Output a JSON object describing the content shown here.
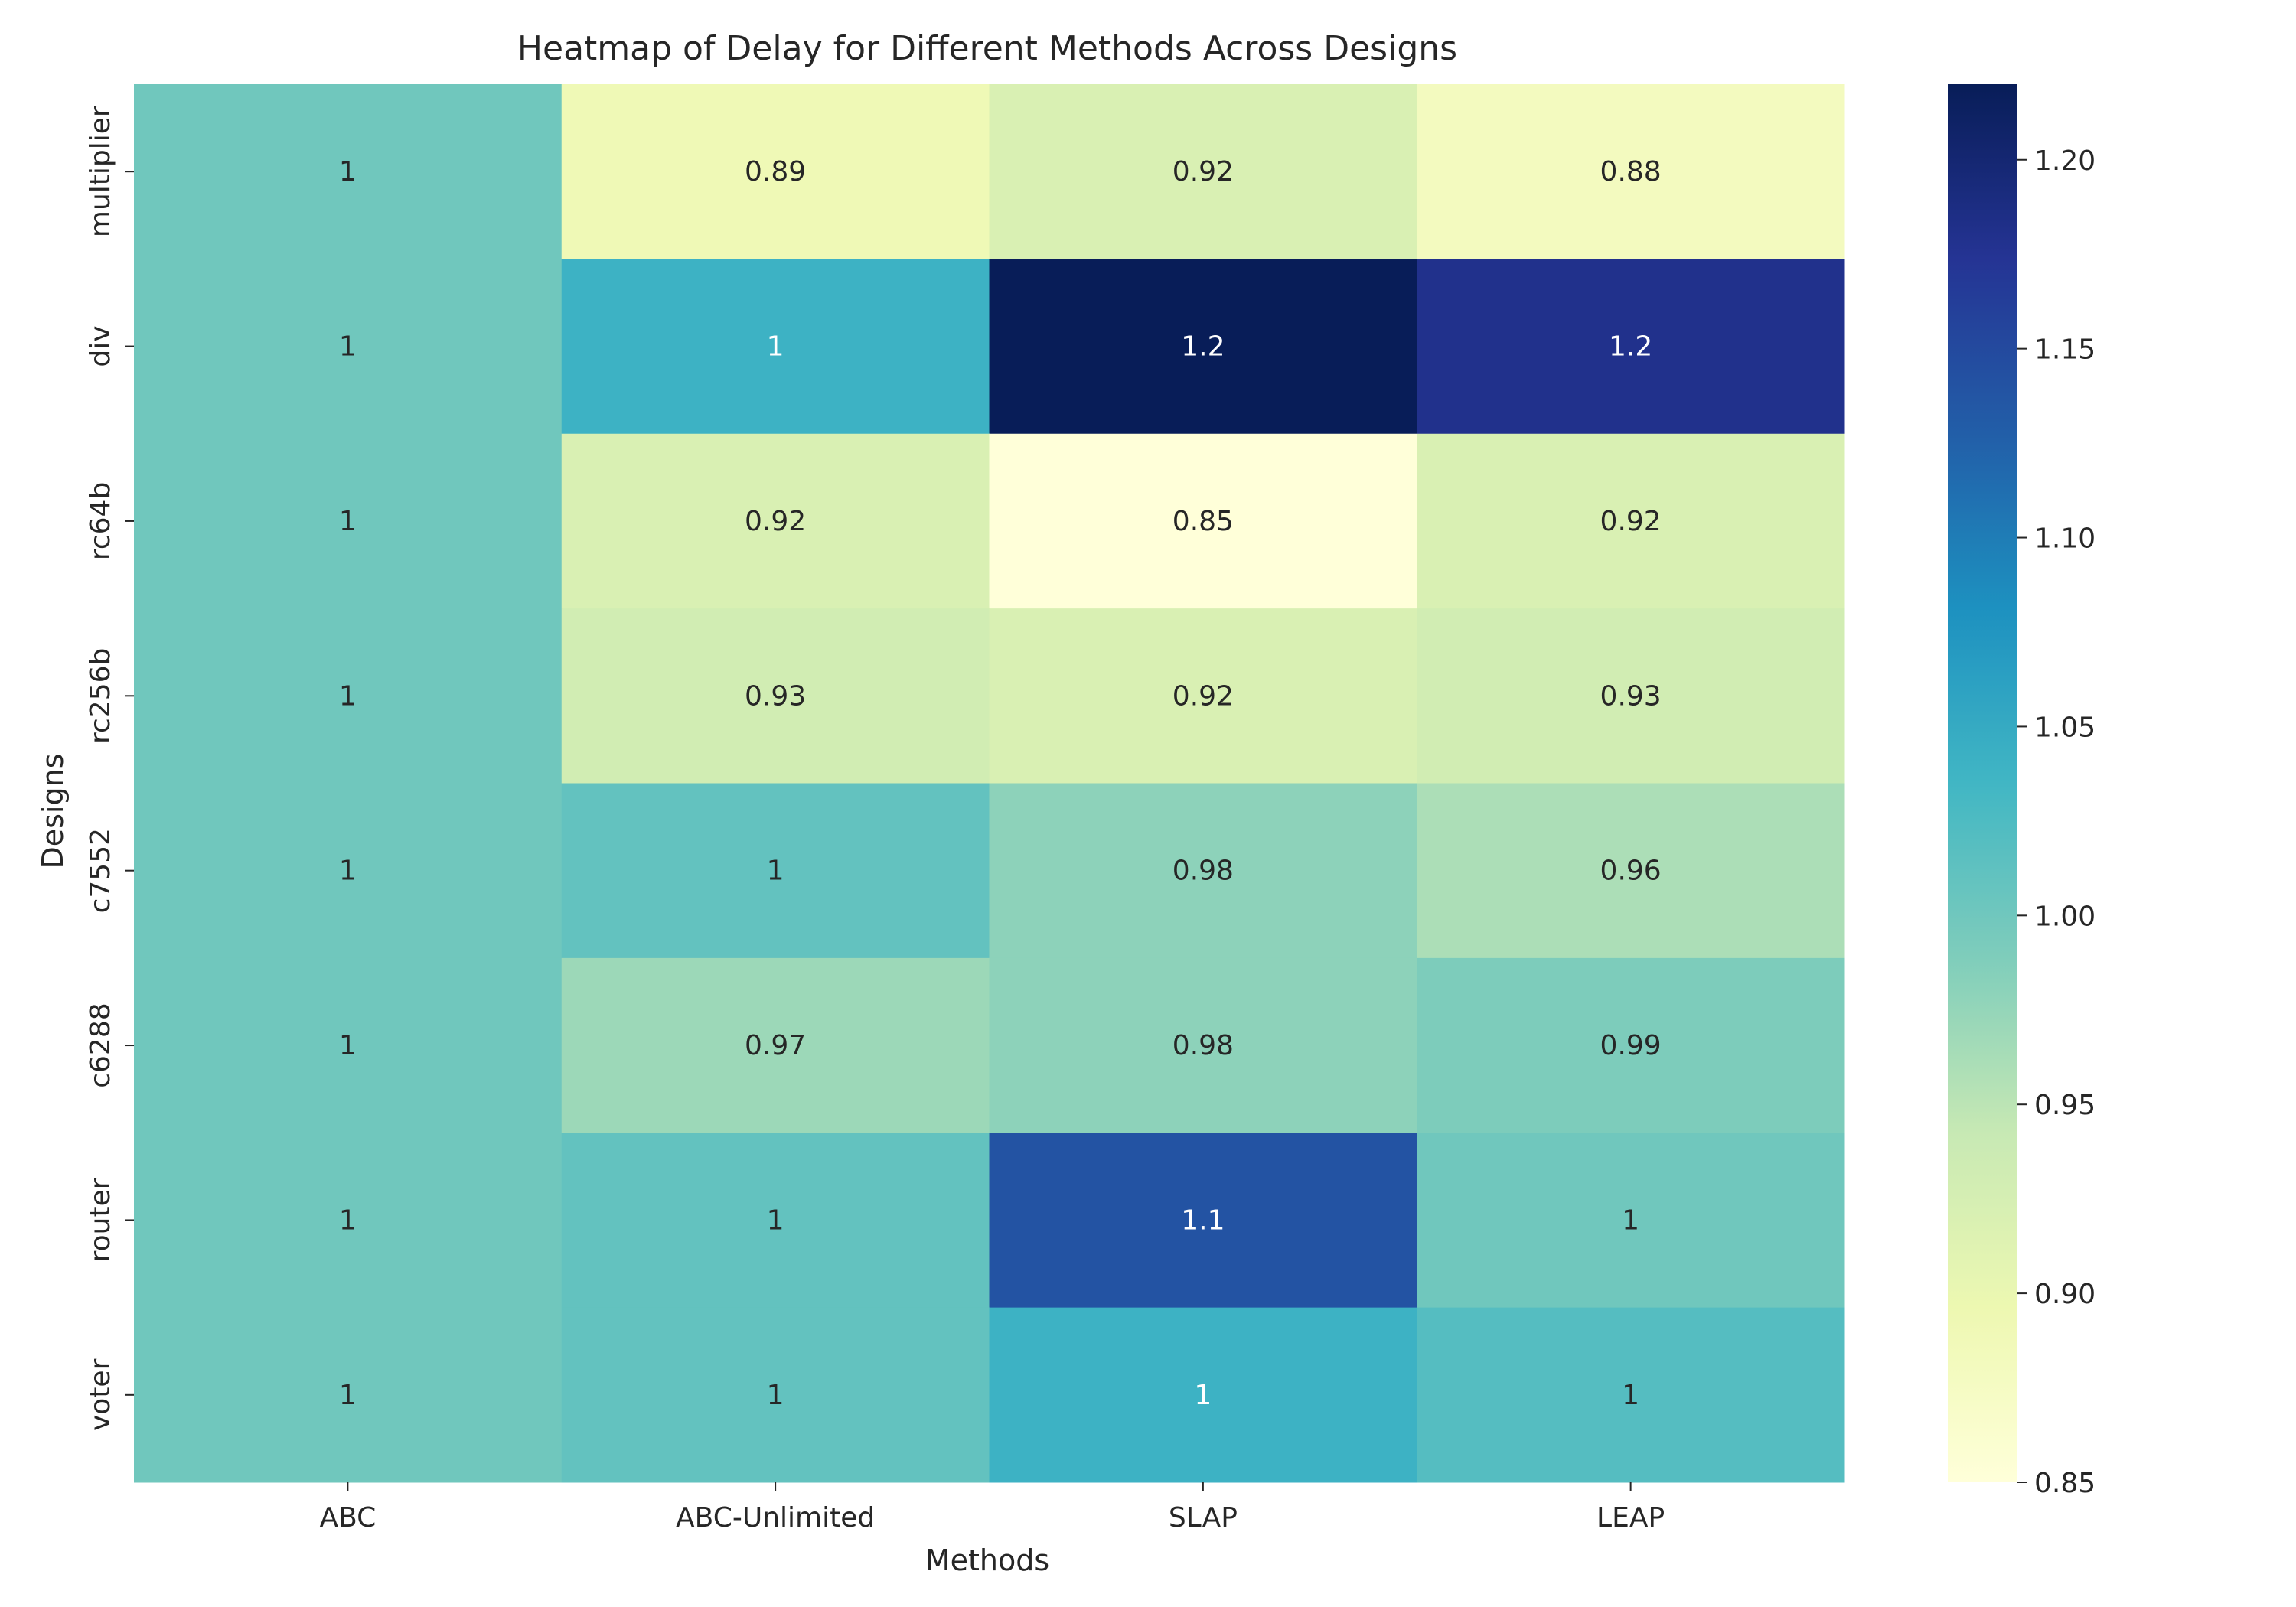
{
  "chart_data": {
    "type": "heatmap",
    "title": "Heatmap of Delay for Different Methods Across Designs",
    "xlabel": "Methods",
    "ylabel": "Designs",
    "columns": [
      "ABC",
      "ABC-Unlimited",
      "SLAP",
      "LEAP"
    ],
    "rows": [
      "multiplier",
      "div",
      "rc64b",
      "rc256b",
      "c7552",
      "c6288",
      "router",
      "voter"
    ],
    "values": [
      [
        1.0,
        0.89,
        0.92,
        0.88
      ],
      [
        1.0,
        1.04,
        1.22,
        1.18
      ],
      [
        1.0,
        0.92,
        0.85,
        0.92
      ],
      [
        1.0,
        0.93,
        0.92,
        0.93
      ],
      [
        1.0,
        1.01,
        0.98,
        0.96
      ],
      [
        1.0,
        0.97,
        0.98,
        0.99
      ],
      [
        1.0,
        1.01,
        1.14,
        1.0
      ],
      [
        1.0,
        1.01,
        1.04,
        1.02
      ]
    ],
    "annotations": [
      [
        "1",
        "0.89",
        "0.92",
        "0.88"
      ],
      [
        "1",
        "1",
        "1.2",
        "1.2"
      ],
      [
        "1",
        "0.92",
        "0.85",
        "0.92"
      ],
      [
        "1",
        "0.93",
        "0.92",
        "0.93"
      ],
      [
        "1",
        "1",
        "0.98",
        "0.96"
      ],
      [
        "1",
        "0.97",
        "0.98",
        "0.99"
      ],
      [
        "1",
        "1",
        "1.1",
        "1"
      ],
      [
        "1",
        "1",
        "1",
        "1"
      ]
    ],
    "colorscale": "YlGnBu",
    "colorbar": {
      "range": [
        0.85,
        1.22
      ],
      "ticks": [
        "0.85",
        "0.90",
        "0.95",
        "1.00",
        "1.05",
        "1.10",
        "1.15",
        "1.20"
      ]
    }
  }
}
